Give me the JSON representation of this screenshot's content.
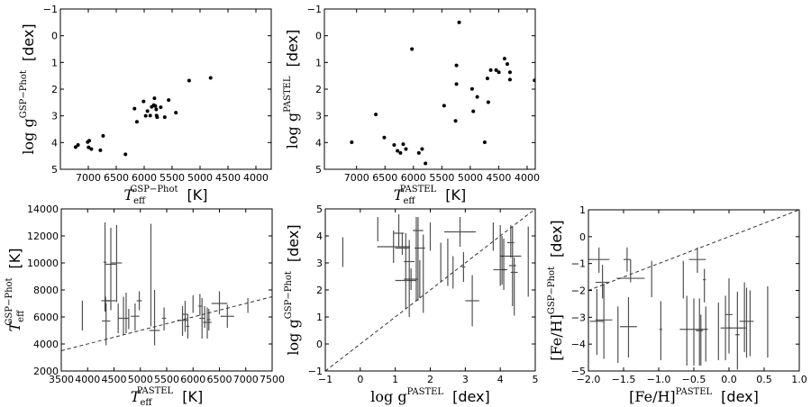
{
  "chart_data": [
    {
      "type": "scatter",
      "id": "teff-logg-gsp",
      "xlabel": {
        "base": "T",
        "sub": "eff",
        "sup": "GSP−Phot",
        "unit": "[K]"
      },
      "ylabel": {
        "base": "log g",
        "sup": "GSP−Phot",
        "unit": "[dex]"
      },
      "xlim": [
        7500,
        3726
      ],
      "ylim": [
        5,
        -1
      ],
      "xticks": [
        "7000",
        "6500",
        "6000",
        "5500",
        "5000",
        "4500",
        "4000"
      ],
      "yticks": [
        "-1",
        "0",
        "1",
        "2",
        "3",
        "4",
        "5"
      ],
      "points": [
        [
          7227,
          4.17
        ],
        [
          7184,
          4.09
        ],
        [
          7011,
          3.98
        ],
        [
          6984,
          3.93
        ],
        [
          6995,
          4.18
        ],
        [
          6946,
          4.24
        ],
        [
          6784,
          4.29
        ],
        [
          6735,
          3.75
        ],
        [
          6335,
          4.44
        ],
        [
          6173,
          2.73
        ],
        [
          6130,
          3.22
        ],
        [
          6011,
          2.46
        ],
        [
          5973,
          3.0
        ],
        [
          5941,
          2.82
        ],
        [
          5892,
          2.99
        ],
        [
          5865,
          2.66
        ],
        [
          5827,
          2.6
        ],
        [
          5816,
          2.34
        ],
        [
          5800,
          2.63
        ],
        [
          5784,
          2.76
        ],
        [
          5778,
          2.99
        ],
        [
          5768,
          3.05
        ],
        [
          5703,
          2.68
        ],
        [
          5632,
          3.05
        ],
        [
          5562,
          2.41
        ],
        [
          5432,
          2.88
        ],
        [
          5195,
          1.68
        ],
        [
          4811,
          1.58
        ]
      ]
    },
    {
      "type": "scatter",
      "id": "teff-logg-pastel",
      "xlabel": {
        "base": "T",
        "sub": "eff",
        "sup": "PASTEL",
        "unit": "[K]"
      },
      "ylabel": {
        "base": "log g",
        "sup": "PASTEL",
        "unit": "[dex]"
      },
      "xlim": [
        7566,
        3857
      ],
      "ylim": [
        5,
        -1
      ],
      "xticks": [
        "7000",
        "6500",
        "6000",
        "5500",
        "5000",
        "4500",
        "4000"
      ],
      "yticks": [
        "-1",
        "0",
        "1",
        "2",
        "3",
        "4",
        "5"
      ],
      "points": [
        [
          7085,
          3.99
        ],
        [
          6661,
          2.95
        ],
        [
          6513,
          3.81
        ],
        [
          6339,
          4.09
        ],
        [
          6280,
          4.31
        ],
        [
          6228,
          4.39
        ],
        [
          6180,
          4.06
        ],
        [
          6132,
          4.24
        ],
        [
          6026,
          0.5
        ],
        [
          5905,
          4.39
        ],
        [
          5847,
          4.24
        ],
        [
          5788,
          4.78
        ],
        [
          5460,
          2.62
        ],
        [
          5259,
          3.19
        ],
        [
          5243,
          1.11
        ],
        [
          5243,
          1.81
        ],
        [
          5196,
          -0.5
        ],
        [
          4968,
          1.99
        ],
        [
          4947,
          2.83
        ],
        [
          4878,
          2.29
        ],
        [
          4746,
          3.99
        ],
        [
          4698,
          1.6
        ],
        [
          4683,
          2.49
        ],
        [
          4640,
          1.29
        ],
        [
          4545,
          1.29
        ],
        [
          4497,
          1.37
        ],
        [
          4397,
          0.86
        ],
        [
          4349,
          1.06
        ],
        [
          4302,
          1.37
        ],
        [
          4302,
          1.64
        ],
        [
          3868,
          1.67
        ]
      ]
    },
    {
      "type": "errorbar",
      "id": "teff-comparison",
      "xlabel": {
        "base": "T",
        "sub": "eff",
        "sup": "PASTEL",
        "unit": "[K]"
      },
      "ylabel": {
        "base": "T",
        "sub": "eff",
        "sup": "GSP−Phot",
        "unit": "[K]"
      },
      "xlim": [
        3500,
        7500
      ],
      "ylim": [
        2000,
        14000
      ],
      "xticks": [
        "3500",
        "4000",
        "4500",
        "5000",
        "5500",
        "6000",
        "6500",
        "7000",
        "7500"
      ],
      "yticks": [
        "2000",
        "4000",
        "6000",
        "8000",
        "10000",
        "12000",
        "14000"
      ],
      "reference_line": "1:1",
      "errorbars": [
        {
          "x": 3900,
          "y": 6100,
          "xerr": 0,
          "ymin": 5000,
          "ymax": 7200
        },
        {
          "x": 4330,
          "y": 10050,
          "xerr": 30,
          "ymin": 6400,
          "ymax": 13000
        },
        {
          "x": 4340,
          "y": 7200,
          "xerr": 80,
          "ymin": 6400,
          "ymax": 7500
        },
        {
          "x": 4350,
          "y": 5700,
          "xerr": 80,
          "ymin": 3900,
          "ymax": 7000
        },
        {
          "x": 4440,
          "y": 7200,
          "xerr": 100,
          "ymin": 6500,
          "ymax": 12600
        },
        {
          "x": 4440,
          "y": 9900,
          "xerr": 100,
          "ymin": 9900,
          "ymax": 9900
        },
        {
          "x": 4550,
          "y": 10000,
          "xerr": 100,
          "ymin": 7100,
          "ymax": 12800
        },
        {
          "x": 4580,
          "y": 5900,
          "xerr": 0,
          "ymin": 4800,
          "ymax": 7000
        },
        {
          "x": 4680,
          "y": 5900,
          "xerr": 100,
          "ymin": 4700,
          "ymax": 7500
        },
        {
          "x": 4730,
          "y": 5900,
          "xerr": 0,
          "ymin": 4800,
          "ymax": 7800
        },
        {
          "x": 4780,
          "y": 5800,
          "xerr": 0,
          "ymin": 5100,
          "ymax": 6600
        },
        {
          "x": 4900,
          "y": 6050,
          "xerr": 80,
          "ymin": 5000,
          "ymax": 7000
        },
        {
          "x": 4980,
          "y": 7200,
          "xerr": 50,
          "ymin": 6500,
          "ymax": 7900
        },
        {
          "x": 5200,
          "y": 7700,
          "xerr": 0,
          "ymin": 5300,
          "ymax": 12900
        },
        {
          "x": 5270,
          "y": 5000,
          "xerr": 100,
          "ymin": 3900,
          "ymax": 8000
        },
        {
          "x": 5450,
          "y": 5900,
          "xerr": 40,
          "ymin": 5000,
          "ymax": 6700
        },
        {
          "x": 5800,
          "y": 5750,
          "xerr": 100,
          "ymin": 4600,
          "ymax": 6800
        },
        {
          "x": 5850,
          "y": 6200,
          "xerr": 50,
          "ymin": 4900,
          "ymax": 7200
        },
        {
          "x": 5900,
          "y": 5300,
          "xerr": 30,
          "ymin": 4400,
          "ymax": 6200
        },
        {
          "x": 6000,
          "y": 7000,
          "xerr": 0,
          "ymin": 6300,
          "ymax": 7600
        },
        {
          "x": 6130,
          "y": 6800,
          "xerr": 30,
          "ymin": 6100,
          "ymax": 7700
        },
        {
          "x": 6170,
          "y": 5900,
          "xerr": 50,
          "ymin": 4400,
          "ymax": 7400
        },
        {
          "x": 6220,
          "y": 6000,
          "xerr": 0,
          "ymin": 5200,
          "ymax": 6800
        },
        {
          "x": 6270,
          "y": 5600,
          "xerr": 80,
          "ymin": 4400,
          "ymax": 6700
        },
        {
          "x": 6300,
          "y": 5800,
          "xerr": 30,
          "ymin": 5000,
          "ymax": 6600
        },
        {
          "x": 6500,
          "y": 7000,
          "xerr": 150,
          "ymin": 6200,
          "ymax": 7900
        },
        {
          "x": 6650,
          "y": 6050,
          "xerr": 130,
          "ymin": 5200,
          "ymax": 6900
        },
        {
          "x": 7040,
          "y": 6800,
          "xerr": 0,
          "ymin": 6300,
          "ymax": 7400
        }
      ]
    },
    {
      "type": "errorbar",
      "id": "logg-comparison",
      "xlabel": {
        "base": "log g",
        "sup": "PASTEL",
        "unit": "[dex]"
      },
      "ylabel": {
        "base": "log g",
        "sup": "GSP−Phot",
        "unit": "[dex]"
      },
      "xlim": [
        -1,
        5
      ],
      "ylim": [
        -1,
        5
      ],
      "xticks": [
        "-1",
        "0",
        "1",
        "2",
        "3",
        "4",
        "5"
      ],
      "yticks": [
        "-1",
        "0",
        "1",
        "2",
        "3",
        "4",
        "5"
      ],
      "reference_line": "1:1",
      "errorbars": [
        {
          "x": -0.5,
          "y": 3.4,
          "xerr": 0,
          "ymin": 2.85,
          "ymax": 3.95
        },
        {
          "x": 0.5,
          "y": 4.25,
          "xerr": 0,
          "ymin": 3.8,
          "ymax": 4.7
        },
        {
          "x": 0.95,
          "y": 3.6,
          "xerr": 0.47,
          "ymin": 3.0,
          "ymax": 4.2
        },
        {
          "x": 1.1,
          "y": 4.1,
          "xerr": 0.15,
          "ymin": 3.6,
          "ymax": 4.8
        },
        {
          "x": 1.2,
          "y": 3.55,
          "xerr": 0.2,
          "ymin": 3.3,
          "ymax": 4.1
        },
        {
          "x": 1.3,
          "y": 2.35,
          "xerr": 0.3,
          "ymin": 1.3,
          "ymax": 4.1
        },
        {
          "x": 1.4,
          "y": 3.05,
          "xerr": 0.15,
          "ymin": 1.0,
          "ymax": 3.85
        },
        {
          "x": 1.45,
          "y": 2.4,
          "xerr": 0.2,
          "ymin": 2.0,
          "ymax": 2.8
        },
        {
          "x": 1.6,
          "y": 3.55,
          "xerr": 0,
          "ymin": 1.6,
          "ymax": 4.7
        },
        {
          "x": 1.65,
          "y": 4.2,
          "xerr": 0.15,
          "ymin": 1.6,
          "ymax": 4.7
        },
        {
          "x": 1.7,
          "y": 3.55,
          "xerr": 0.15,
          "ymin": 1.7,
          "ymax": 3.1
        },
        {
          "x": 1.8,
          "y": 3.55,
          "xerr": 0,
          "ymin": 1.15,
          "ymax": 4.05
        },
        {
          "x": 2.0,
          "y": 4.0,
          "xerr": 0,
          "ymin": 3.45,
          "ymax": 4.5
        },
        {
          "x": 2.3,
          "y": 3.0,
          "xerr": 0,
          "ymin": 2.3,
          "ymax": 3.75
        },
        {
          "x": 2.5,
          "y": 3.0,
          "xerr": 0,
          "ymin": 2.15,
          "ymax": 3.9
        },
        {
          "x": 2.65,
          "y": 2.6,
          "xerr": 0,
          "ymin": 2.05,
          "ymax": 3.25
        },
        {
          "x": 2.85,
          "y": 4.15,
          "xerr": 0.45,
          "ymin": 3.6,
          "ymax": 4.7
        },
        {
          "x": 2.95,
          "y": 2.85,
          "xerr": 0.05,
          "ymin": 2.3,
          "ymax": 3.4
        },
        {
          "x": 3.2,
          "y": 1.6,
          "xerr": 0.2,
          "ymin": 0.65,
          "ymax": 2.55
        },
        {
          "x": 3.8,
          "y": 4.0,
          "xerr": 0,
          "ymin": 3.45,
          "ymax": 4.5
        },
        {
          "x": 4.0,
          "y": 2.75,
          "xerr": 0.2,
          "ymin": 2.15,
          "ymax": 4.4
        },
        {
          "x": 4.05,
          "y": 3.25,
          "xerr": 0.05,
          "ymin": 2.2,
          "ymax": 4.0
        },
        {
          "x": 4.1,
          "y": 2.75,
          "xerr": 0.05,
          "ymin": 2.0,
          "ymax": 3.9
        },
        {
          "x": 4.3,
          "y": 3.75,
          "xerr": 0.1,
          "ymin": 3.2,
          "ymax": 4.4
        },
        {
          "x": 4.3,
          "y": 3.25,
          "xerr": 0.3,
          "ymin": 3.25,
          "ymax": 3.25
        },
        {
          "x": 4.35,
          "y": 2.9,
          "xerr": 0.1,
          "ymin": 1.4,
          "ymax": 4.35
        },
        {
          "x": 4.4,
          "y": 2.65,
          "xerr": 0.1,
          "ymin": 1.05,
          "ymax": 3.2
        },
        {
          "x": 4.8,
          "y": 3.05,
          "xerr": 0,
          "ymin": 1.75,
          "ymax": 4.35
        }
      ]
    },
    {
      "type": "errorbar",
      "id": "feh-comparison",
      "xlabel": {
        "base": "[Fe/H]",
        "sup": "PASTEL",
        "unit": "[dex]"
      },
      "ylabel": {
        "base": "[Fe/H]",
        "sup": "GSP−Phot",
        "unit": "[dex]"
      },
      "xlim": [
        -2,
        1
      ],
      "ylim": [
        -5,
        1
      ],
      "xticks": [
        "-2.0",
        "-1.5",
        "-1.0",
        "-0.5",
        "0.0",
        "0.5",
        "1.0"
      ],
      "yticks": [
        "-5",
        "-4",
        "-3",
        "-2",
        "-1",
        "0",
        "1"
      ],
      "reference_line": "1:1",
      "errorbars": [
        {
          "x": -1.85,
          "y": -0.85,
          "xerr": 0.15,
          "ymin": -1.35,
          "ymax": -0.4
        },
        {
          "x": -1.8,
          "y": -1.7,
          "xerr": 0.1,
          "ymin": -2.3,
          "ymax": -1.05
        },
        {
          "x": -1.88,
          "y": -3.15,
          "xerr": 0.1,
          "ymin": -4.4,
          "ymax": -1.95
        },
        {
          "x": -1.78,
          "y": -3.1,
          "xerr": 0.12,
          "ymin": -4.55,
          "ymax": -1.75
        },
        {
          "x": -1.45,
          "y": -0.85,
          "xerr": 0.05,
          "ymin": -1.3,
          "ymax": -0.4
        },
        {
          "x": -1.4,
          "y": -1.55,
          "xerr": 0.2,
          "ymin": -1.7,
          "ymax": -0.85
        },
        {
          "x": -1.58,
          "y": -3.65,
          "xerr": 0,
          "ymin": -4.7,
          "ymax": -2.6
        },
        {
          "x": -1.43,
          "y": -3.35,
          "xerr": 0.12,
          "ymin": -4.5,
          "ymax": -2.25
        },
        {
          "x": -1.1,
          "y": -1.55,
          "xerr": 0,
          "ymin": -2.25,
          "ymax": -0.9
        },
        {
          "x": -0.97,
          "y": -3.45,
          "xerr": 0.02,
          "ymin": -4.6,
          "ymax": -2.4
        },
        {
          "x": -0.65,
          "y": -1.6,
          "xerr": 0,
          "ymin": -2.3,
          "ymax": -0.9
        },
        {
          "x": -0.6,
          "y": -3.5,
          "xerr": 0,
          "ymin": -4.8,
          "ymax": -2.2
        },
        {
          "x": -0.5,
          "y": -3.45,
          "xerr": 0.2,
          "ymin": -4.8,
          "ymax": -2.3
        },
        {
          "x": -0.45,
          "y": -0.85,
          "xerr": 0.12,
          "ymin": -1.35,
          "ymax": -0.4
        },
        {
          "x": -0.42,
          "y": -3.5,
          "xerr": 0.05,
          "ymin": -4.8,
          "ymax": -2.3
        },
        {
          "x": -0.4,
          "y": -3.5,
          "xerr": 0,
          "ymin": -4.8,
          "ymax": -2.9
        },
        {
          "x": -0.35,
          "y": -1.6,
          "xerr": 0.02,
          "ymin": -2.45,
          "ymax": -1.2
        },
        {
          "x": -0.33,
          "y": -3.5,
          "xerr": 0,
          "ymin": -4.65,
          "ymax": -2.6
        },
        {
          "x": -0.15,
          "y": -3.4,
          "xerr": 0,
          "ymin": -4.6,
          "ymax": -2.45
        },
        {
          "x": -0.05,
          "y": -3.4,
          "xerr": 0.07,
          "ymin": -4.6,
          "ymax": -2.2
        },
        {
          "x": 0.0,
          "y": -2.9,
          "xerr": 0.05,
          "ymin": -4.35,
          "ymax": -1.55
        },
        {
          "x": 0.12,
          "y": -3.4,
          "xerr": 0.12,
          "ymin": -4.95,
          "ymax": -2.05
        },
        {
          "x": 0.12,
          "y": -3.65,
          "xerr": 0.03,
          "ymin": -3.65,
          "ymax": -3.65
        },
        {
          "x": 0.22,
          "y": -3.25,
          "xerr": 0,
          "ymin": -4.3,
          "ymax": -1.7
        },
        {
          "x": 0.25,
          "y": -3.15,
          "xerr": 0.1,
          "ymin": -4.5,
          "ymax": -1.9
        },
        {
          "x": 0.3,
          "y": -3.15,
          "xerr": 0,
          "ymin": -4.45,
          "ymax": -2.0
        },
        {
          "x": 0.55,
          "y": -3.15,
          "xerr": 0,
          "ymin": -4.5,
          "ymax": -1.85
        }
      ]
    }
  ]
}
